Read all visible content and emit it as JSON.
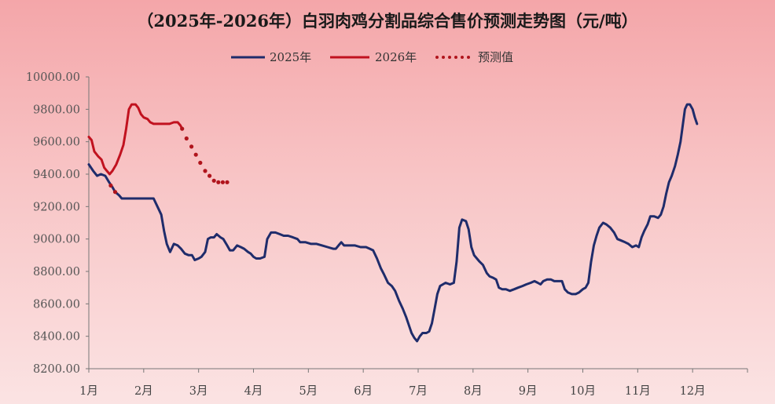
{
  "chart_data": {
    "type": "line",
    "title": "（2025年-2026年）白羽肉鸡分割品综合售价预测走势图（元/吨）",
    "xlabel": "",
    "ylabel": "",
    "ylim": [
      8200,
      10000
    ],
    "y_ticks": [
      "8200.00",
      "8400.00",
      "8600.00",
      "8800.00",
      "9000.00",
      "9200.00",
      "9400.00",
      "9600.00",
      "9800.00",
      "10000.00"
    ],
    "x_ticks": [
      "1月",
      "2月",
      "3月",
      "4月",
      "5月",
      "6月",
      "7月",
      "8月",
      "9月",
      "10月",
      "11月",
      "12月"
    ],
    "x_unit": "month (1 = start of 1月, 13 = end of 12月)",
    "xlim": [
      1,
      13
    ],
    "legend_position": "top-center",
    "grid": false,
    "series": [
      {
        "name": "2025年",
        "style": "solid",
        "color": "#1f2c6b",
        "points": [
          [
            1.0,
            9460
          ],
          [
            1.08,
            9420
          ],
          [
            1.15,
            9390
          ],
          [
            1.22,
            9400
          ],
          [
            1.3,
            9390
          ],
          [
            1.37,
            9350
          ],
          [
            1.43,
            9320
          ],
          [
            1.48,
            9290
          ],
          [
            1.55,
            9270
          ],
          [
            1.6,
            9250
          ],
          [
            1.7,
            9250
          ],
          [
            1.8,
            9250
          ],
          [
            1.9,
            9250
          ],
          [
            2.0,
            9250
          ],
          [
            2.1,
            9250
          ],
          [
            2.18,
            9250
          ],
          [
            2.25,
            9200
          ],
          [
            2.32,
            9150
          ],
          [
            2.37,
            9050
          ],
          [
            2.42,
            8970
          ],
          [
            2.48,
            8920
          ],
          [
            2.55,
            8970
          ],
          [
            2.62,
            8960
          ],
          [
            2.68,
            8940
          ],
          [
            2.75,
            8910
          ],
          [
            2.82,
            8900
          ],
          [
            2.88,
            8900
          ],
          [
            2.93,
            8870
          ],
          [
            3.0,
            8880
          ],
          [
            3.05,
            8890
          ],
          [
            3.12,
            8920
          ],
          [
            3.17,
            9000
          ],
          [
            3.22,
            9010
          ],
          [
            3.28,
            9010
          ],
          [
            3.33,
            9030
          ],
          [
            3.4,
            9010
          ],
          [
            3.45,
            9000
          ],
          [
            3.52,
            8960
          ],
          [
            3.57,
            8930
          ],
          [
            3.63,
            8930
          ],
          [
            3.7,
            8960
          ],
          [
            3.77,
            8950
          ],
          [
            3.83,
            8940
          ],
          [
            3.9,
            8920
          ],
          [
            3.95,
            8910
          ],
          [
            4.0,
            8890
          ],
          [
            4.05,
            8880
          ],
          [
            4.12,
            8880
          ],
          [
            4.2,
            8890
          ],
          [
            4.25,
            9000
          ],
          [
            4.32,
            9040
          ],
          [
            4.4,
            9040
          ],
          [
            4.48,
            9030
          ],
          [
            4.55,
            9020
          ],
          [
            4.63,
            9020
          ],
          [
            4.72,
            9010
          ],
          [
            4.8,
            9000
          ],
          [
            4.85,
            8980
          ],
          [
            4.95,
            8980
          ],
          [
            5.05,
            8970
          ],
          [
            5.15,
            8970
          ],
          [
            5.25,
            8960
          ],
          [
            5.35,
            8950
          ],
          [
            5.45,
            8940
          ],
          [
            5.5,
            8940
          ],
          [
            5.55,
            8960
          ],
          [
            5.6,
            8980
          ],
          [
            5.65,
            8960
          ],
          [
            5.75,
            8960
          ],
          [
            5.85,
            8960
          ],
          [
            5.95,
            8950
          ],
          [
            6.05,
            8950
          ],
          [
            6.12,
            8940
          ],
          [
            6.18,
            8930
          ],
          [
            6.25,
            8880
          ],
          [
            6.32,
            8820
          ],
          [
            6.38,
            8780
          ],
          [
            6.45,
            8730
          ],
          [
            6.52,
            8710
          ],
          [
            6.58,
            8680
          ],
          [
            6.65,
            8620
          ],
          [
            6.72,
            8570
          ],
          [
            6.78,
            8520
          ],
          [
            6.83,
            8470
          ],
          [
            6.88,
            8420
          ],
          [
            6.93,
            8390
          ],
          [
            6.98,
            8370
          ],
          [
            7.03,
            8400
          ],
          [
            7.08,
            8420
          ],
          [
            7.15,
            8420
          ],
          [
            7.2,
            8430
          ],
          [
            7.25,
            8480
          ],
          [
            7.3,
            8570
          ],
          [
            7.35,
            8660
          ],
          [
            7.4,
            8710
          ],
          [
            7.5,
            8730
          ],
          [
            7.58,
            8720
          ],
          [
            7.65,
            8730
          ],
          [
            7.7,
            8860
          ],
          [
            7.75,
            9070
          ],
          [
            7.8,
            9120
          ],
          [
            7.87,
            9110
          ],
          [
            7.92,
            9060
          ],
          [
            7.97,
            8950
          ],
          [
            8.02,
            8900
          ],
          [
            8.07,
            8880
          ],
          [
            8.12,
            8860
          ],
          [
            8.18,
            8840
          ],
          [
            8.25,
            8790
          ],
          [
            8.3,
            8770
          ],
          [
            8.37,
            8760
          ],
          [
            8.42,
            8750
          ],
          [
            8.47,
            8700
          ],
          [
            8.53,
            8690
          ],
          [
            8.6,
            8690
          ],
          [
            8.67,
            8680
          ],
          [
            8.75,
            8690
          ],
          [
            8.82,
            8700
          ],
          [
            8.9,
            8710
          ],
          [
            8.97,
            8720
          ],
          [
            9.05,
            8730
          ],
          [
            9.12,
            8740
          ],
          [
            9.18,
            8730
          ],
          [
            9.23,
            8720
          ],
          [
            9.28,
            8740
          ],
          [
            9.35,
            8750
          ],
          [
            9.42,
            8750
          ],
          [
            9.48,
            8740
          ],
          [
            9.55,
            8740
          ],
          [
            9.62,
            8740
          ],
          [
            9.67,
            8690
          ],
          [
            9.73,
            8670
          ],
          [
            9.8,
            8660
          ],
          [
            9.87,
            8660
          ],
          [
            9.93,
            8670
          ],
          [
            10.0,
            8690
          ],
          [
            10.05,
            8700
          ],
          [
            10.1,
            8730
          ],
          [
            10.15,
            8860
          ],
          [
            10.2,
            8960
          ],
          [
            10.25,
            9020
          ],
          [
            10.3,
            9070
          ],
          [
            10.37,
            9100
          ],
          [
            10.43,
            9090
          ],
          [
            10.5,
            9070
          ],
          [
            10.57,
            9040
          ],
          [
            10.63,
            9000
          ],
          [
            10.7,
            8990
          ],
          [
            10.77,
            8980
          ],
          [
            10.83,
            8970
          ],
          [
            10.9,
            8950
          ],
          [
            10.97,
            8960
          ],
          [
            11.02,
            8950
          ],
          [
            11.07,
            9010
          ],
          [
            11.12,
            9050
          ],
          [
            11.18,
            9090
          ],
          [
            11.23,
            9140
          ],
          [
            11.3,
            9140
          ],
          [
            11.37,
            9130
          ],
          [
            11.42,
            9150
          ],
          [
            11.47,
            9200
          ],
          [
            11.52,
            9280
          ],
          [
            11.57,
            9350
          ],
          [
            11.62,
            9390
          ],
          [
            11.68,
            9450
          ],
          [
            11.73,
            9520
          ],
          [
            11.78,
            9600
          ],
          [
            11.82,
            9700
          ],
          [
            11.86,
            9800
          ],
          [
            11.9,
            9830
          ],
          [
            11.95,
            9830
          ],
          [
            12.0,
            9800
          ],
          [
            12.04,
            9750
          ],
          [
            12.08,
            9710
          ]
        ]
      },
      {
        "name": "2026年",
        "style": "solid",
        "color": "#c1121f",
        "points": [
          [
            1.0,
            9630
          ],
          [
            1.05,
            9610
          ],
          [
            1.1,
            9540
          ],
          [
            1.17,
            9510
          ],
          [
            1.23,
            9490
          ],
          [
            1.28,
            9440
          ],
          [
            1.33,
            9420
          ],
          [
            1.38,
            9400
          ],
          [
            1.43,
            9420
          ],
          [
            1.5,
            9460
          ],
          [
            1.57,
            9520
          ],
          [
            1.63,
            9580
          ],
          [
            1.68,
            9680
          ],
          [
            1.73,
            9800
          ],
          [
            1.78,
            9830
          ],
          [
            1.85,
            9830
          ],
          [
            1.9,
            9810
          ],
          [
            1.95,
            9770
          ],
          [
            2.0,
            9750
          ],
          [
            2.07,
            9740
          ],
          [
            2.12,
            9720
          ],
          [
            2.18,
            9710
          ],
          [
            2.25,
            9710
          ],
          [
            2.32,
            9710
          ],
          [
            2.4,
            9710
          ],
          [
            2.47,
            9710
          ],
          [
            2.55,
            9720
          ],
          [
            2.62,
            9720
          ],
          [
            2.67,
            9700
          ],
          [
            2.7,
            9680
          ]
        ]
      },
      {
        "name": "预测值",
        "style": "dotted",
        "color": "#b0141c",
        "points": [
          [
            1.4,
            9330
          ],
          [
            1.48,
            9290
          ],
          [
            2.7,
            9680
          ],
          [
            2.78,
            9620
          ],
          [
            2.87,
            9570
          ],
          [
            2.95,
            9520
          ],
          [
            3.03,
            9470
          ],
          [
            3.12,
            9420
          ],
          [
            3.2,
            9390
          ],
          [
            3.28,
            9360
          ],
          [
            3.36,
            9350
          ],
          [
            3.44,
            9350
          ],
          [
            3.52,
            9350
          ]
        ]
      }
    ]
  }
}
